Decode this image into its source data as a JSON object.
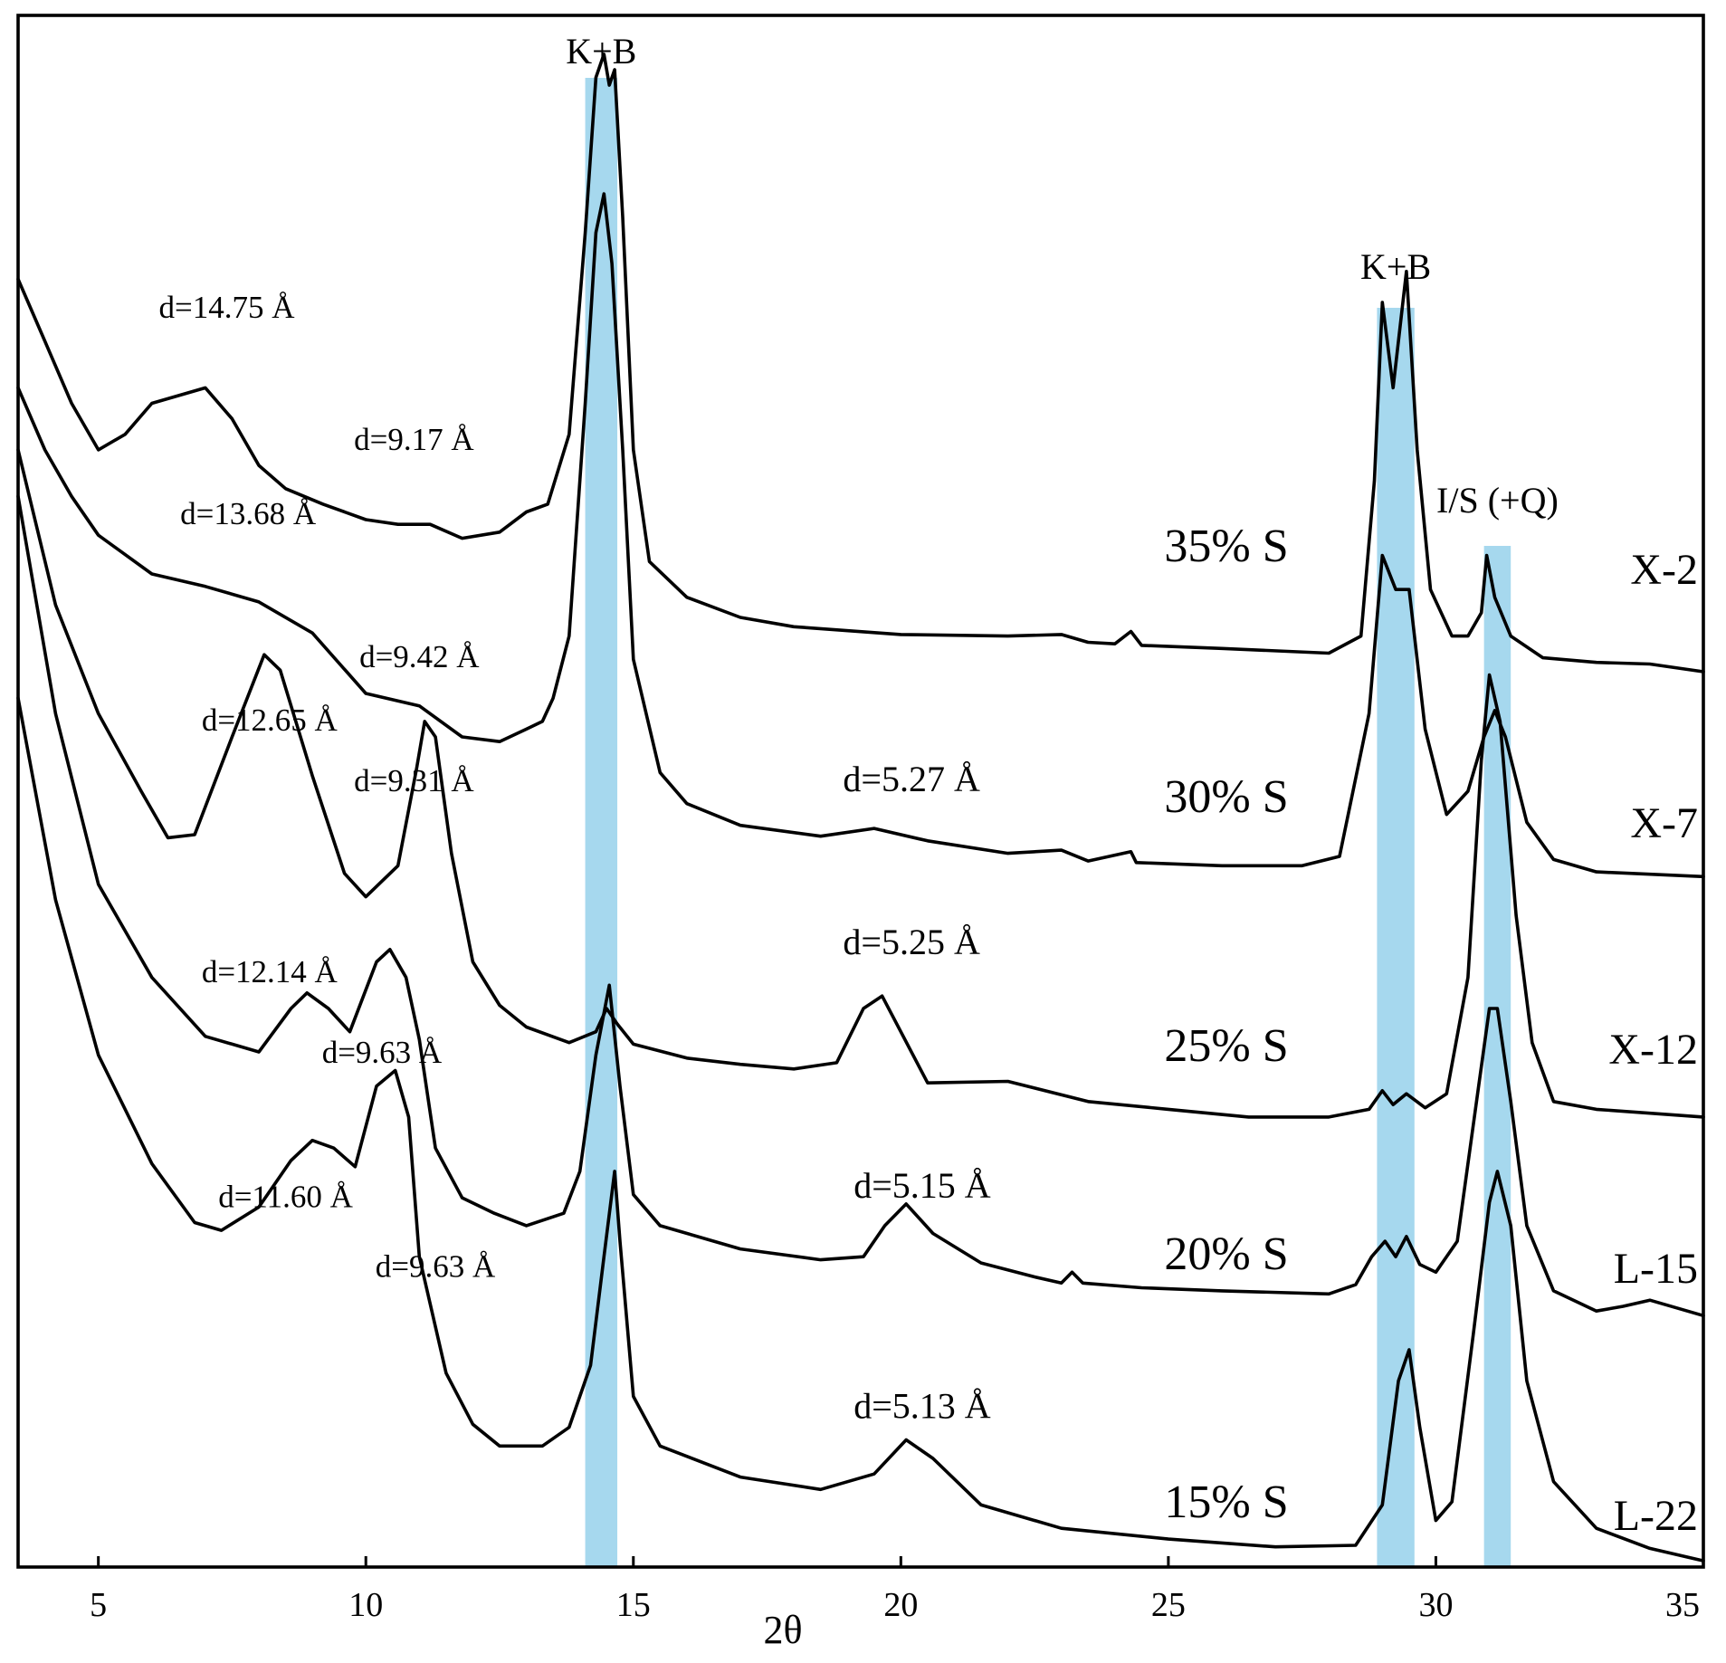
{
  "chart_data": {
    "type": "line",
    "title": "",
    "xlabel": "2θ",
    "ylabel": "",
    "xlim": [
      3.5,
      35
    ],
    "x_ticks": [
      5,
      10,
      15,
      20,
      25,
      30,
      35
    ],
    "grid": false,
    "highlight_bands": [
      {
        "label": "K+B",
        "x_range": [
          14.1,
          14.7
        ],
        "color": "#a6d8ee"
      },
      {
        "label": "K+B",
        "x_range": [
          28.9,
          29.6
        ],
        "color": "#a6d8ee"
      },
      {
        "label": "I/S (+Q)",
        "x_range": [
          30.9,
          31.4
        ],
        "color": "#a6d8ee"
      }
    ],
    "series": [
      {
        "name": "X-2",
        "smectite_label": "35% S",
        "points": [
          [
            3.5,
            0.83
          ],
          [
            4,
            0.79
          ],
          [
            4.5,
            0.75
          ],
          [
            5,
            0.72
          ],
          [
            5.5,
            0.73
          ],
          [
            6,
            0.75
          ],
          [
            7,
            0.76
          ],
          [
            7.5,
            0.74
          ],
          [
            8,
            0.71
          ],
          [
            8.5,
            0.695
          ],
          [
            9.2,
            0.685
          ],
          [
            10,
            0.675
          ],
          [
            10.6,
            0.672
          ],
          [
            11.2,
            0.672
          ],
          [
            11.8,
            0.663
          ],
          [
            12.5,
            0.667
          ],
          [
            13,
            0.68
          ],
          [
            13.4,
            0.685
          ],
          [
            13.8,
            0.73
          ],
          [
            14.1,
            0.86
          ],
          [
            14.3,
            0.96
          ],
          [
            14.45,
            0.975
          ],
          [
            14.55,
            0.955
          ],
          [
            14.65,
            0.965
          ],
          [
            14.8,
            0.87
          ],
          [
            15,
            0.72
          ],
          [
            15.3,
            0.648
          ],
          [
            16,
            0.625
          ],
          [
            17,
            0.612
          ],
          [
            18,
            0.606
          ],
          [
            20,
            0.601
          ],
          [
            22,
            0.6
          ],
          [
            23,
            0.601
          ],
          [
            23.5,
            0.596
          ],
          [
            24,
            0.595
          ],
          [
            24.3,
            0.603
          ],
          [
            24.5,
            0.594
          ],
          [
            26,
            0.592
          ],
          [
            28,
            0.589
          ],
          [
            28.6,
            0.6
          ],
          [
            28.85,
            0.7
          ],
          [
            29.0,
            0.815
          ],
          [
            29.2,
            0.76
          ],
          [
            29.45,
            0.835
          ],
          [
            29.65,
            0.72
          ],
          [
            29.9,
            0.63
          ],
          [
            30.3,
            0.6
          ],
          [
            30.6,
            0.6
          ],
          [
            30.85,
            0.615
          ],
          [
            30.95,
            0.652
          ],
          [
            31.1,
            0.625
          ],
          [
            31.4,
            0.6
          ],
          [
            32,
            0.586
          ],
          [
            33,
            0.583
          ],
          [
            34,
            0.582
          ],
          [
            35,
            0.577
          ]
        ]
      },
      {
        "name": "X-7",
        "smectite_label": "30% S",
        "points": [
          [
            3.5,
            0.76
          ],
          [
            4,
            0.72
          ],
          [
            4.5,
            0.69
          ],
          [
            5,
            0.665
          ],
          [
            6,
            0.64
          ],
          [
            7,
            0.632
          ],
          [
            8,
            0.622
          ],
          [
            9,
            0.602
          ],
          [
            10,
            0.563
          ],
          [
            11,
            0.555
          ],
          [
            11.8,
            0.535
          ],
          [
            12.5,
            0.532
          ],
          [
            13,
            0.54
          ],
          [
            13.3,
            0.545
          ],
          [
            13.5,
            0.56
          ],
          [
            13.8,
            0.6
          ],
          [
            14.1,
            0.75
          ],
          [
            14.3,
            0.86
          ],
          [
            14.45,
            0.885
          ],
          [
            14.6,
            0.84
          ],
          [
            14.8,
            0.72
          ],
          [
            15,
            0.585
          ],
          [
            15.5,
            0.512
          ],
          [
            16,
            0.492
          ],
          [
            17,
            0.478
          ],
          [
            18.5,
            0.471
          ],
          [
            19.5,
            0.476
          ],
          [
            20.5,
            0.468
          ],
          [
            22,
            0.46
          ],
          [
            23,
            0.462
          ],
          [
            23.5,
            0.455
          ],
          [
            24.3,
            0.461
          ],
          [
            24.4,
            0.454
          ],
          [
            26,
            0.452
          ],
          [
            27.5,
            0.452
          ],
          [
            28.2,
            0.458
          ],
          [
            28.75,
            0.55
          ],
          [
            29.0,
            0.652
          ],
          [
            29.25,
            0.63
          ],
          [
            29.5,
            0.63
          ],
          [
            29.8,
            0.54
          ],
          [
            30.2,
            0.485
          ],
          [
            30.6,
            0.5
          ],
          [
            30.9,
            0.535
          ],
          [
            31.1,
            0.552
          ],
          [
            31.3,
            0.535
          ],
          [
            31.7,
            0.48
          ],
          [
            32.2,
            0.456
          ],
          [
            33,
            0.448
          ],
          [
            35,
            0.445
          ]
        ]
      },
      {
        "name": "X-12",
        "smectite_label": "25% S",
        "points": [
          [
            3.5,
            0.72
          ],
          [
            4.2,
            0.62
          ],
          [
            5,
            0.55
          ],
          [
            5.8,
            0.5
          ],
          [
            6.3,
            0.47
          ],
          [
            6.8,
            0.472
          ],
          [
            7.5,
            0.535
          ],
          [
            8.1,
            0.588
          ],
          [
            8.4,
            0.578
          ],
          [
            9,
            0.51
          ],
          [
            9.6,
            0.447
          ],
          [
            10,
            0.432
          ],
          [
            10.6,
            0.452
          ],
          [
            10.95,
            0.515
          ],
          [
            11.1,
            0.545
          ],
          [
            11.3,
            0.535
          ],
          [
            11.6,
            0.46
          ],
          [
            12,
            0.39
          ],
          [
            12.5,
            0.362
          ],
          [
            13,
            0.348
          ],
          [
            13.8,
            0.338
          ],
          [
            14.3,
            0.345
          ],
          [
            14.5,
            0.36
          ],
          [
            14.7,
            0.35
          ],
          [
            15,
            0.337
          ],
          [
            16,
            0.328
          ],
          [
            17,
            0.324
          ],
          [
            18,
            0.321
          ],
          [
            18.8,
            0.325
          ],
          [
            19.3,
            0.36
          ],
          [
            19.65,
            0.368
          ],
          [
            20,
            0.345
          ],
          [
            20.5,
            0.312
          ],
          [
            22,
            0.313
          ],
          [
            23.5,
            0.3
          ],
          [
            25,
            0.295
          ],
          [
            26.5,
            0.29
          ],
          [
            28,
            0.29
          ],
          [
            28.75,
            0.295
          ],
          [
            29.0,
            0.307
          ],
          [
            29.2,
            0.298
          ],
          [
            29.45,
            0.305
          ],
          [
            29.8,
            0.296
          ],
          [
            30.2,
            0.305
          ],
          [
            30.6,
            0.38
          ],
          [
            30.85,
            0.52
          ],
          [
            31.0,
            0.575
          ],
          [
            31.2,
            0.545
          ],
          [
            31.5,
            0.42
          ],
          [
            31.8,
            0.338
          ],
          [
            32.2,
            0.3
          ],
          [
            33,
            0.295
          ],
          [
            35,
            0.29
          ]
        ]
      },
      {
        "name": "L-15",
        "smectite_label": "20% S",
        "points": [
          [
            3.5,
            0.69
          ],
          [
            4.2,
            0.55
          ],
          [
            5,
            0.44
          ],
          [
            6,
            0.38
          ],
          [
            7,
            0.342
          ],
          [
            8,
            0.332
          ],
          [
            8.6,
            0.36
          ],
          [
            8.9,
            0.37
          ],
          [
            9.3,
            0.36
          ],
          [
            9.7,
            0.345
          ],
          [
            10.2,
            0.39
          ],
          [
            10.45,
            0.398
          ],
          [
            10.75,
            0.38
          ],
          [
            11,
            0.34
          ],
          [
            11.3,
            0.27
          ],
          [
            11.8,
            0.238
          ],
          [
            12.4,
            0.228
          ],
          [
            13,
            0.22
          ],
          [
            13.7,
            0.228
          ],
          [
            14.0,
            0.255
          ],
          [
            14.3,
            0.33
          ],
          [
            14.55,
            0.375
          ],
          [
            14.75,
            0.31
          ],
          [
            15.0,
            0.24
          ],
          [
            15.5,
            0.22
          ],
          [
            17,
            0.205
          ],
          [
            18.5,
            0.198
          ],
          [
            19.3,
            0.2
          ],
          [
            19.7,
            0.22
          ],
          [
            20.1,
            0.234
          ],
          [
            20.6,
            0.215
          ],
          [
            21.5,
            0.196
          ],
          [
            22.5,
            0.187
          ],
          [
            23,
            0.183
          ],
          [
            23.2,
            0.19
          ],
          [
            23.4,
            0.183
          ],
          [
            24.5,
            0.18
          ],
          [
            26,
            0.178
          ],
          [
            28,
            0.176
          ],
          [
            28.5,
            0.182
          ],
          [
            28.8,
            0.2
          ],
          [
            29.05,
            0.21
          ],
          [
            29.25,
            0.2
          ],
          [
            29.45,
            0.213
          ],
          [
            29.7,
            0.195
          ],
          [
            30.0,
            0.19
          ],
          [
            30.4,
            0.21
          ],
          [
            30.8,
            0.31
          ],
          [
            31.0,
            0.36
          ],
          [
            31.15,
            0.36
          ],
          [
            31.4,
            0.3
          ],
          [
            31.7,
            0.22
          ],
          [
            32.2,
            0.178
          ],
          [
            33,
            0.165
          ],
          [
            33.5,
            0.168
          ],
          [
            34,
            0.172
          ],
          [
            35,
            0.162
          ]
        ]
      },
      {
        "name": "L-22",
        "smectite_label": "15% S",
        "points": [
          [
            3.5,
            0.56
          ],
          [
            4.2,
            0.43
          ],
          [
            5,
            0.33
          ],
          [
            6,
            0.26
          ],
          [
            6.8,
            0.222
          ],
          [
            7.3,
            0.217
          ],
          [
            8,
            0.232
          ],
          [
            8.6,
            0.262
          ],
          [
            9.0,
            0.275
          ],
          [
            9.4,
            0.27
          ],
          [
            9.8,
            0.258
          ],
          [
            10.2,
            0.31
          ],
          [
            10.55,
            0.32
          ],
          [
            10.8,
            0.29
          ],
          [
            11.0,
            0.2
          ],
          [
            11.5,
            0.125
          ],
          [
            12,
            0.092
          ],
          [
            12.5,
            0.078
          ],
          [
            13.3,
            0.078
          ],
          [
            13.8,
            0.09
          ],
          [
            14.2,
            0.13
          ],
          [
            14.45,
            0.2
          ],
          [
            14.65,
            0.255
          ],
          [
            14.75,
            0.21
          ],
          [
            15,
            0.11
          ],
          [
            15.5,
            0.078
          ],
          [
            17,
            0.058
          ],
          [
            18.5,
            0.05
          ],
          [
            19.5,
            0.06
          ],
          [
            20.1,
            0.082
          ],
          [
            20.6,
            0.07
          ],
          [
            21.5,
            0.04
          ],
          [
            23,
            0.025
          ],
          [
            25,
            0.018
          ],
          [
            27,
            0.013
          ],
          [
            28.5,
            0.014
          ],
          [
            29.0,
            0.04
          ],
          [
            29.3,
            0.12
          ],
          [
            29.5,
            0.14
          ],
          [
            29.7,
            0.09
          ],
          [
            30.0,
            0.03
          ],
          [
            30.3,
            0.042
          ],
          [
            30.7,
            0.15
          ],
          [
            31.0,
            0.235
          ],
          [
            31.15,
            0.255
          ],
          [
            31.4,
            0.22
          ],
          [
            31.7,
            0.12
          ],
          [
            32.2,
            0.055
          ],
          [
            33,
            0.025
          ],
          [
            34,
            0.012
          ],
          [
            35,
            0.004
          ]
        ]
      }
    ],
    "annotations": [
      {
        "text": "d=14.75 Å",
        "x": 7.4,
        "y": 0.805
      },
      {
        "text": "d=9.17 Å",
        "x": 10.9,
        "y": 0.72
      },
      {
        "text": "d=13.68 Å",
        "x": 7.8,
        "y": 0.672
      },
      {
        "text": "d=9.42 Å",
        "x": 11.0,
        "y": 0.58
      },
      {
        "text": "d=12.65 Å",
        "x": 8.2,
        "y": 0.539
      },
      {
        "text": "d=9.31 Å",
        "x": 10.9,
        "y": 0.5
      },
      {
        "text": "d=5.27 Å",
        "x": 20.2,
        "y": 0.5
      },
      {
        "text": "d=12.14 Å",
        "x": 8.2,
        "y": 0.377
      },
      {
        "text": "d=5.25 Å",
        "x": 20.2,
        "y": 0.395
      },
      {
        "text": "d=9.63 Å",
        "x": 10.3,
        "y": 0.325
      },
      {
        "text": "d=11.60 Å",
        "x": 8.5,
        "y": 0.232
      },
      {
        "text": "d=5.15 Å",
        "x": 20.4,
        "y": 0.238
      },
      {
        "text": "d=9.63 Å",
        "x": 11.3,
        "y": 0.187
      },
      {
        "text": "d=5.13 Å",
        "x": 20.4,
        "y": 0.096
      }
    ]
  }
}
